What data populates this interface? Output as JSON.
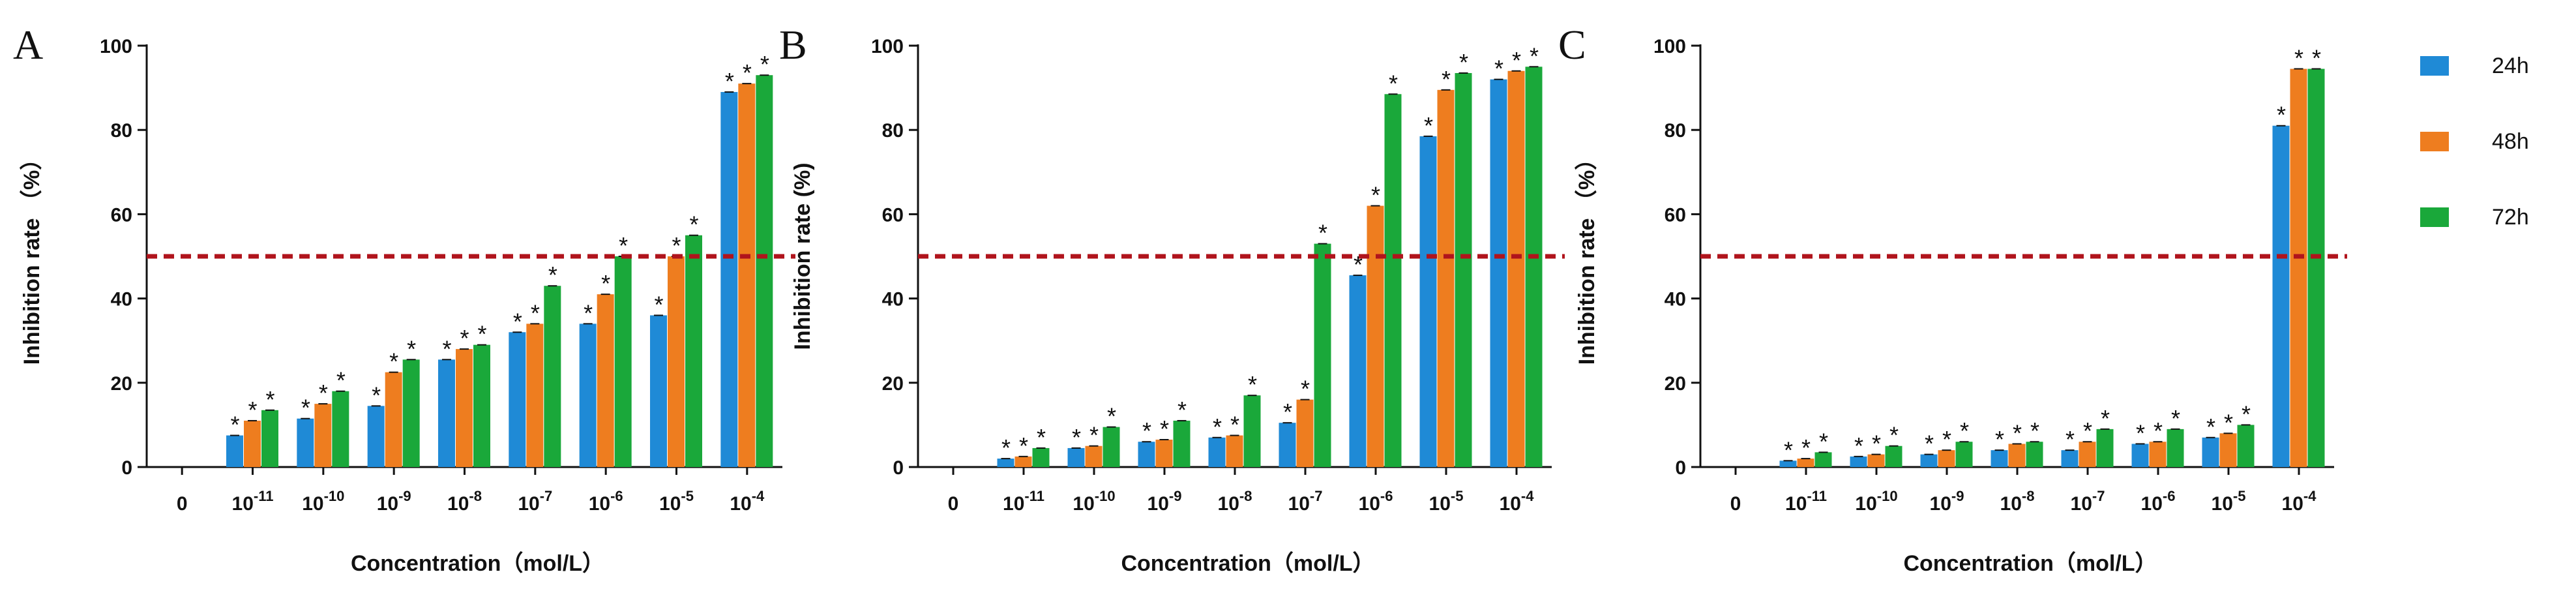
{
  "colors": {
    "24h": "#1f8ad6",
    "48h": "#ee7d1f",
    "72h": "#1aa83a",
    "threshold": "#b0141c",
    "axis": "#111111"
  },
  "legend": [
    {
      "name": "24h",
      "color": "#1f8ad6"
    },
    {
      "name": "48h",
      "color": "#ee7d1f"
    },
    {
      "name": "72h",
      "color": "#1aa83a"
    }
  ],
  "chart_data": [
    {
      "panel": "A",
      "type": "bar",
      "ylabel": "Inhibition rate （%）",
      "xlabel": "Concentration（mol/L）",
      "ylim": [
        0,
        100
      ],
      "yticks": [
        0,
        20,
        40,
        60,
        80,
        100
      ],
      "threshold": 50,
      "categories": [
        {
          "base": "0",
          "exp": ""
        },
        {
          "base": "10",
          "exp": "-11"
        },
        {
          "base": "10",
          "exp": "-10"
        },
        {
          "base": "10",
          "exp": "-9"
        },
        {
          "base": "10",
          "exp": "-8"
        },
        {
          "base": "10",
          "exp": "-7"
        },
        {
          "base": "10",
          "exp": "-6"
        },
        {
          "base": "10",
          "exp": "-5"
        },
        {
          "base": "10",
          "exp": "-4"
        }
      ],
      "series": [
        {
          "name": "24h",
          "values": [
            0,
            7.5,
            11.5,
            14.5,
            25.5,
            32,
            34,
            36,
            89
          ]
        },
        {
          "name": "48h",
          "values": [
            0,
            11,
            15,
            22.5,
            28,
            34,
            41,
            50,
            91
          ]
        },
        {
          "name": "72h",
          "values": [
            0,
            13.5,
            18,
            25.5,
            29,
            43,
            50,
            55,
            93
          ]
        }
      ],
      "annotation": "*"
    },
    {
      "panel": "B",
      "type": "bar",
      "ylabel": "Inhibition rate (%)",
      "xlabel": "Concentration（mol/L）",
      "ylim": [
        0,
        100
      ],
      "yticks": [
        0,
        20,
        40,
        60,
        80,
        100
      ],
      "threshold": 50,
      "categories": [
        {
          "base": "0",
          "exp": ""
        },
        {
          "base": "10",
          "exp": "-11"
        },
        {
          "base": "10",
          "exp": "-10"
        },
        {
          "base": "10",
          "exp": "-9"
        },
        {
          "base": "10",
          "exp": "-8"
        },
        {
          "base": "10",
          "exp": "-7"
        },
        {
          "base": "10",
          "exp": "-6"
        },
        {
          "base": "10",
          "exp": "-5"
        },
        {
          "base": "10",
          "exp": "-4"
        }
      ],
      "series": [
        {
          "name": "24h",
          "values": [
            0,
            2,
            4.5,
            6,
            7,
            10.5,
            45.5,
            78.5,
            92
          ]
        },
        {
          "name": "48h",
          "values": [
            0,
            2.5,
            5,
            6.5,
            7.5,
            16,
            62,
            89.5,
            94
          ]
        },
        {
          "name": "72h",
          "values": [
            0,
            4.5,
            9.5,
            11,
            17,
            53,
            88.5,
            93.5,
            95
          ]
        }
      ],
      "annotation": "*"
    },
    {
      "panel": "C",
      "type": "bar",
      "ylabel": "Inhibition rate （%）",
      "xlabel": "Concentration（mol/L）",
      "ylim": [
        0,
        100
      ],
      "yticks": [
        0,
        20,
        40,
        60,
        80,
        100
      ],
      "threshold": 50,
      "categories": [
        {
          "base": "0",
          "exp": ""
        },
        {
          "base": "10",
          "exp": "-11"
        },
        {
          "base": "10",
          "exp": "-10"
        },
        {
          "base": "10",
          "exp": "-9"
        },
        {
          "base": "10",
          "exp": "-8"
        },
        {
          "base": "10",
          "exp": "-7"
        },
        {
          "base": "10",
          "exp": "-6"
        },
        {
          "base": "10",
          "exp": "-5"
        },
        {
          "base": "10",
          "exp": "-4"
        }
      ],
      "series": [
        {
          "name": "24h",
          "values": [
            0,
            1.5,
            2.5,
            3,
            4,
            4,
            5.5,
            7,
            81
          ]
        },
        {
          "name": "48h",
          "values": [
            0,
            2,
            3,
            4,
            5.5,
            6,
            6,
            8,
            94.5
          ]
        },
        {
          "name": "72h",
          "values": [
            0,
            3.5,
            5,
            6,
            6,
            9,
            9,
            10,
            94.5
          ]
        }
      ],
      "annotation": "*"
    }
  ]
}
